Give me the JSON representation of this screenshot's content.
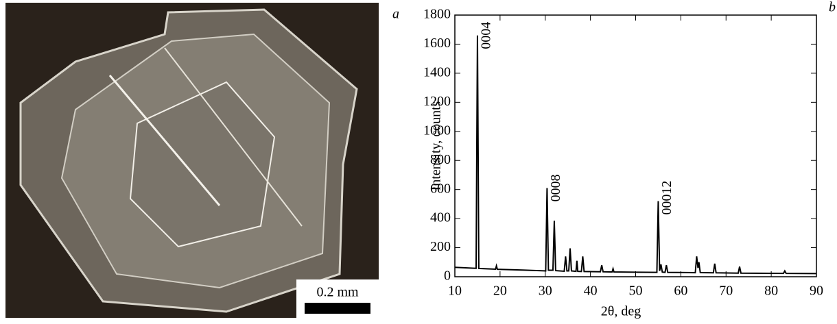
{
  "photo": {
    "panel_label": "a",
    "scale_bar": "0.2 mm"
  },
  "chart_data": {
    "type": "line",
    "panel_label": "b",
    "x_label": "2θ, deg",
    "y_label": "Intensity, counts",
    "x": [
      10,
      14.7,
      15.0,
      15.3,
      19,
      19.2,
      19.4,
      25,
      30.1,
      30.4,
      30.7,
      31.7,
      32.0,
      32.3,
      34.2,
      34.5,
      34.8,
      35.2,
      35.5,
      35.8,
      36.8,
      37.0,
      37.2,
      38.0,
      38.3,
      38.6,
      42.2,
      42.5,
      42.8,
      44.8,
      45.0,
      45.2,
      50,
      54.7,
      55.0,
      55.3,
      55.6,
      55.9,
      56.5,
      56.8,
      57.1,
      63.2,
      63.5,
      63.8,
      64.0,
      64.3,
      67.2,
      67.5,
      67.8,
      72.7,
      73.0,
      73.3,
      82.7,
      83.0,
      83.3,
      90
    ],
    "values": [
      65,
      58,
      1660,
      57,
      52,
      75,
      51,
      46,
      40,
      610,
      45,
      45,
      385,
      42,
      38,
      140,
      40,
      40,
      195,
      40,
      37,
      110,
      37,
      36,
      140,
      36,
      34,
      80,
      34,
      33,
      55,
      33,
      31,
      30,
      520,
      40,
      85,
      32,
      30,
      80,
      30,
      28,
      140,
      60,
      100,
      28,
      27,
      90,
      27,
      25,
      70,
      25,
      23,
      40,
      23,
      22
    ],
    "color": "#000000",
    "annotations": [
      {
        "text": "0004",
        "x": 15.0
      },
      {
        "text": "0008",
        "x": 30.4
      },
      {
        "text": "00012",
        "x": 55.0
      }
    ],
    "xlim": [
      10,
      90
    ],
    "xticks": [
      10,
      20,
      30,
      40,
      50,
      60,
      70,
      80,
      90
    ],
    "ylim": [
      0,
      1800
    ],
    "yticks": [
      0,
      200,
      400,
      600,
      800,
      1000,
      1200,
      1400,
      1600,
      1800
    ]
  }
}
